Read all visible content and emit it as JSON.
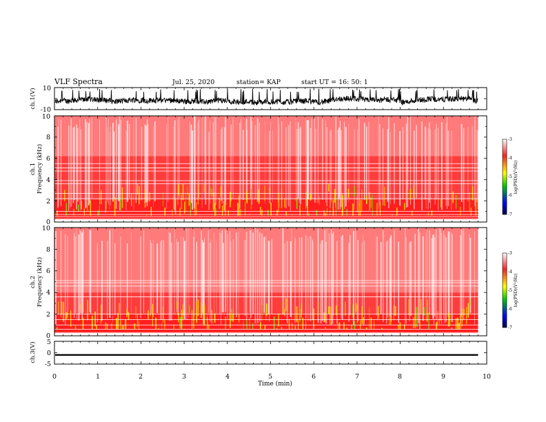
{
  "header": {
    "title": "VLF Spectra",
    "date": "Jul. 25, 2020",
    "station": "station= KAP",
    "start": "start UT =  16: 50: 1"
  },
  "chart_data": [
    {
      "type": "line",
      "panel": "ch1-waveform",
      "ylabel": "ch.1(V)",
      "ylim": [
        -10,
        10
      ],
      "yticks": [
        "10",
        "-10"
      ],
      "xlim": [
        0,
        10
      ],
      "x_end_min": 9.8,
      "note_values": "dense voltage trace fluctuating roughly between -8 and 8 V",
      "grid": false
    },
    {
      "type": "heatmap",
      "panel": "ch1-spectrogram",
      "ylabel": "Frequency (kHz)",
      "ylabel_prefix": "ch.1",
      "ylim": [
        0,
        10
      ],
      "yticks": [
        "0",
        "2",
        "4",
        "6",
        "8",
        "10"
      ],
      "xlim": [
        0,
        10
      ],
      "x_end_min": 9.8,
      "colorbar": {
        "label": "log(PSD)(V²/Hz)",
        "range": [
          -7,
          -3
        ],
        "ticks": [
          "-3",
          "-4",
          "-5",
          "-6",
          "-7"
        ],
        "colors": [
          "#ffffff",
          "#ff0000",
          "#ffff00",
          "#00c800",
          "#0000ff",
          "#000040"
        ]
      },
      "bands_kHz": [
        [
          0,
          2.1,
          "strong"
        ],
        [
          2.1,
          6.2,
          "moderate"
        ],
        [
          6.2,
          10,
          "weak"
        ]
      ],
      "lines_kHz": [
        0.3,
        0.5,
        0.7,
        1.0,
        2.2,
        2.7,
        3.6,
        3.9,
        4.8,
        5.1,
        5.5
      ]
    },
    {
      "type": "heatmap",
      "panel": "ch2-spectrogram",
      "ylabel": "Frequency (kHz)",
      "ylabel_prefix": "ch.2",
      "ylim": [
        0,
        10
      ],
      "yticks": [
        "0",
        "2",
        "4",
        "6",
        "8",
        "10"
      ],
      "xlim": [
        0,
        10
      ],
      "x_end_min": 9.8,
      "colorbar": {
        "label": "log(PSD)(V²/Hz)",
        "range": [
          -7,
          -3
        ],
        "ticks": [
          "-3",
          "-4",
          "-5",
          "-6",
          "-7"
        ],
        "colors": [
          "#ffffff",
          "#ff0000",
          "#ffff00",
          "#00c800",
          "#0000ff",
          "#000040"
        ]
      },
      "bands_kHz": [
        [
          0,
          2.0,
          "strong"
        ],
        [
          2.0,
          4.0,
          "moderate"
        ],
        [
          4.0,
          10,
          "weak"
        ]
      ],
      "lines_kHz": [
        0.3,
        0.6,
        1.0,
        1.5,
        2.0,
        3.6,
        4.6,
        4.9,
        5.1
      ]
    },
    {
      "type": "line",
      "panel": "ch3-waveform",
      "ylabel": "ch.3(V)",
      "ylim": [
        -5,
        5
      ],
      "yticks": [
        "5",
        "0",
        "-5"
      ],
      "xlim": [
        0,
        10
      ],
      "x_end_min": 9.8,
      "note_values": "flat band at about -1 V",
      "band_center_V": -1,
      "band_halfwidth_V": 0.35,
      "xlabel": "Time (min)",
      "xticks": [
        "0",
        "1",
        "2",
        "3",
        "4",
        "5",
        "6",
        "7",
        "8",
        "9",
        "10"
      ],
      "grid": false
    }
  ]
}
